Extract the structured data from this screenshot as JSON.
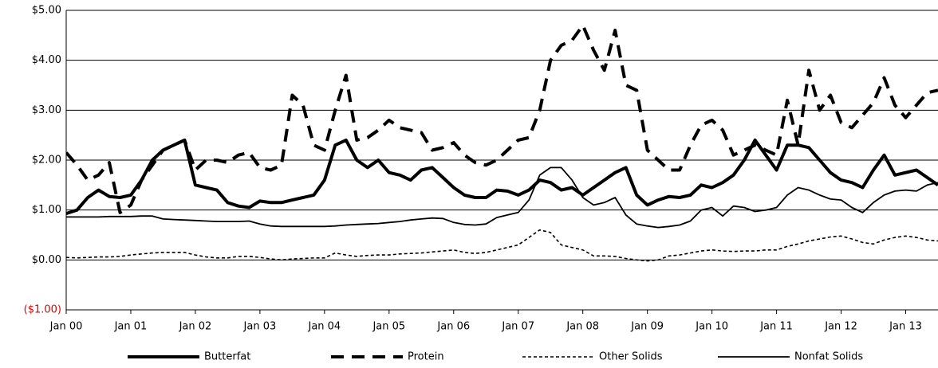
{
  "chart_data": {
    "type": "line",
    "categories": [
      "Jan 00",
      null,
      null,
      null,
      null,
      null,
      "Jan 01",
      null,
      null,
      null,
      null,
      null,
      "Jan 02",
      null,
      null,
      null,
      null,
      null,
      "Jan 03",
      null,
      null,
      null,
      null,
      null,
      "Jan 04",
      null,
      null,
      null,
      null,
      null,
      "Jan 05",
      null,
      null,
      null,
      null,
      null,
      "Jan 06",
      null,
      null,
      null,
      null,
      null,
      "Jan 07",
      null,
      null,
      null,
      null,
      null,
      "Jan 08",
      null,
      null,
      null,
      null,
      null,
      "Jan 09",
      null,
      null,
      null,
      null,
      null,
      "Jan 10",
      null,
      null,
      null,
      null,
      null,
      "Jan 11",
      null,
      null,
      null,
      null,
      null,
      "Jan 12",
      null,
      null,
      null,
      null,
      null,
      "Jan 13",
      null,
      null,
      null
    ],
    "ylim": [
      -1,
      5
    ],
    "yticks": [
      {
        "value": -1,
        "label": "($1.00)"
      },
      {
        "value": 0,
        "label": "$0.00"
      },
      {
        "value": 1,
        "label": "$1.00"
      },
      {
        "value": 2,
        "label": "$2.00"
      },
      {
        "value": 3,
        "label": "$3.00"
      },
      {
        "value": 4,
        "label": "$4.00"
      },
      {
        "value": 5,
        "label": "$5.00"
      }
    ],
    "negative_label_color": "#e00000",
    "grid": true,
    "legend": "bottom",
    "series": [
      {
        "name": "Butterfat",
        "color": "#000000",
        "width": 4,
        "dash": "none",
        "values": [
          0.93,
          1.0,
          1.25,
          1.4,
          1.27,
          1.25,
          1.3,
          1.6,
          2.0,
          2.2,
          2.3,
          2.4,
          1.5,
          1.45,
          1.4,
          1.15,
          1.08,
          1.05,
          1.18,
          1.15,
          1.15,
          1.2,
          1.25,
          1.3,
          1.6,
          2.3,
          2.4,
          2.0,
          1.85,
          2.0,
          1.75,
          1.7,
          1.6,
          1.8,
          1.85,
          1.65,
          1.45,
          1.3,
          1.25,
          1.25,
          1.4,
          1.38,
          1.3,
          1.4,
          1.6,
          1.55,
          1.4,
          1.45,
          1.3,
          1.45,
          1.6,
          1.75,
          1.85,
          1.3,
          1.1,
          1.2,
          1.27,
          1.25,
          1.3,
          1.5,
          1.45,
          1.55,
          1.7,
          2.0,
          2.4,
          2.1,
          1.8,
          2.3,
          2.3,
          2.25,
          2.0,
          1.75,
          1.6,
          1.55,
          1.45,
          1.8,
          2.1,
          1.7,
          1.75,
          1.8,
          1.65,
          1.5
        ]
      },
      {
        "name": "Protein",
        "color": "#000000",
        "width": 4,
        "dash": "16,10",
        "values": [
          2.15,
          1.9,
          1.6,
          1.7,
          1.95,
          0.95,
          1.1,
          1.6,
          1.9,
          2.2,
          2.3,
          2.4,
          1.8,
          2.0,
          2.0,
          1.95,
          2.1,
          2.15,
          1.85,
          1.8,
          1.9,
          3.3,
          3.1,
          2.3,
          2.2,
          3.0,
          3.7,
          2.4,
          2.45,
          2.6,
          2.8,
          2.65,
          2.6,
          2.55,
          2.2,
          2.25,
          2.35,
          2.1,
          1.95,
          1.9,
          2.0,
          2.2,
          2.4,
          2.45,
          3.0,
          4.0,
          4.3,
          4.4,
          4.7,
          4.2,
          3.8,
          4.6,
          3.5,
          3.4,
          2.2,
          2.0,
          1.8,
          1.8,
          2.3,
          2.7,
          2.8,
          2.6,
          2.1,
          2.2,
          2.3,
          2.2,
          2.1,
          3.2,
          2.3,
          3.8,
          3.0,
          3.3,
          2.75,
          2.65,
          2.9,
          3.15,
          3.65,
          3.1,
          2.85,
          3.1,
          3.35,
          3.4
        ]
      },
      {
        "name": "Other Solids",
        "color": "#000000",
        "width": 1.6,
        "dash": "4,3",
        "values": [
          0.05,
          0.04,
          0.05,
          0.06,
          0.06,
          0.07,
          0.1,
          0.12,
          0.14,
          0.15,
          0.15,
          0.15,
          0.1,
          0.06,
          0.04,
          0.04,
          0.07,
          0.07,
          0.05,
          0.02,
          0.0,
          0.02,
          0.03,
          0.04,
          0.04,
          0.14,
          0.1,
          0.07,
          0.09,
          0.1,
          0.1,
          0.12,
          0.13,
          0.14,
          0.16,
          0.18,
          0.2,
          0.15,
          0.13,
          0.15,
          0.2,
          0.25,
          0.3,
          0.45,
          0.6,
          0.55,
          0.3,
          0.25,
          0.2,
          0.08,
          0.08,
          0.07,
          0.03,
          0.0,
          -0.02,
          0.0,
          0.08,
          0.1,
          0.14,
          0.18,
          0.2,
          0.18,
          0.17,
          0.18,
          0.18,
          0.2,
          0.2,
          0.27,
          0.32,
          0.38,
          0.42,
          0.46,
          0.48,
          0.42,
          0.35,
          0.32,
          0.4,
          0.45,
          0.48,
          0.45,
          0.4,
          0.38
        ]
      },
      {
        "name": "Nonfat Solids",
        "color": "#000000",
        "width": 1.8,
        "dash": "none",
        "values": [
          0.86,
          0.86,
          0.86,
          0.86,
          0.87,
          0.87,
          0.87,
          0.88,
          0.88,
          0.82,
          0.81,
          0.8,
          0.79,
          0.78,
          0.77,
          0.77,
          0.77,
          0.78,
          0.72,
          0.68,
          0.67,
          0.67,
          0.67,
          0.67,
          0.67,
          0.68,
          0.7,
          0.71,
          0.72,
          0.73,
          0.75,
          0.77,
          0.8,
          0.82,
          0.84,
          0.83,
          0.75,
          0.71,
          0.7,
          0.72,
          0.85,
          0.9,
          0.95,
          1.2,
          1.7,
          1.85,
          1.85,
          1.6,
          1.25,
          1.1,
          1.15,
          1.25,
          0.9,
          0.72,
          0.68,
          0.65,
          0.67,
          0.7,
          0.78,
          1.0,
          1.05,
          0.88,
          1.08,
          1.05,
          0.97,
          1.0,
          1.05,
          1.3,
          1.45,
          1.4,
          1.3,
          1.22,
          1.2,
          1.05,
          0.95,
          1.15,
          1.3,
          1.38,
          1.4,
          1.38,
          1.5,
          1.55
        ]
      }
    ]
  }
}
